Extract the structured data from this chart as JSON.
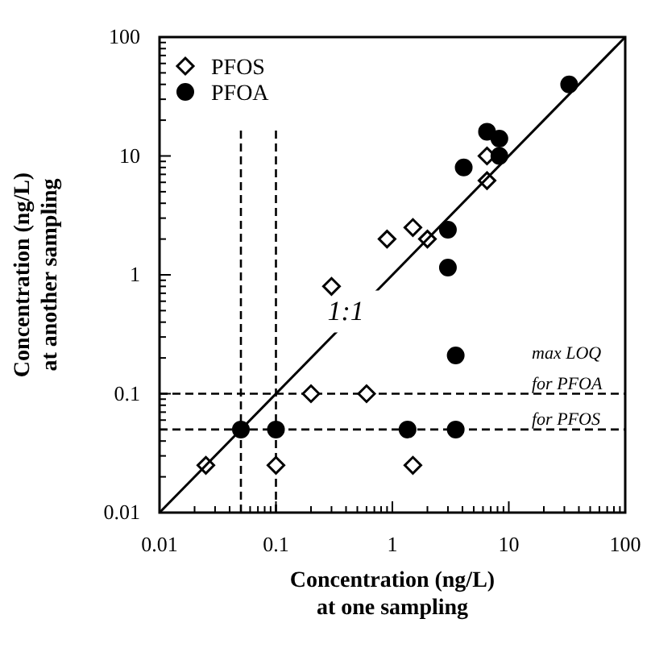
{
  "chart_data": {
    "type": "scatter",
    "xlabel": "Concentration (ng/L)\nat one sampling",
    "ylabel": "Concentration (ng/L)\nat another sampling",
    "log": "xy",
    "grid": false,
    "legend": "top left",
    "xlim": [
      0.01,
      100
    ],
    "ylim": [
      0.01,
      100
    ],
    "xticks": [
      0.01,
      {
        "value": 0.02,
        "label": null
      },
      {
        "value": 0.03,
        "label": null
      },
      {
        "value": 0.04,
        "label": null
      },
      {
        "value": 0.05,
        "label": null
      },
      {
        "value": 0.06,
        "label": null
      },
      {
        "value": 0.07,
        "label": null
      },
      {
        "value": 0.08,
        "label": null
      },
      {
        "value": 0.09,
        "label": null
      },
      0.1,
      {
        "value": 0.2,
        "label": null
      },
      {
        "value": 0.3,
        "label": null
      },
      {
        "value": 0.4,
        "label": null
      },
      {
        "value": 0.5,
        "label": null
      },
      {
        "value": 0.6,
        "label": null
      },
      {
        "value": 0.7,
        "label": null
      },
      {
        "value": 0.8,
        "label": null
      },
      {
        "value": 0.9,
        "label": null
      },
      1,
      {
        "value": 2,
        "label": null
      },
      {
        "value": 3,
        "label": null
      },
      {
        "value": 4,
        "label": null
      },
      {
        "value": 5,
        "label": null
      },
      {
        "value": 6,
        "label": null
      },
      {
        "value": 7,
        "label": null
      },
      {
        "value": 8,
        "label": null
      },
      {
        "value": 9,
        "label": null
      },
      10,
      {
        "value": 20,
        "label": null
      },
      {
        "value": 30,
        "label": null
      },
      {
        "value": 40,
        "label": null
      },
      {
        "value": 50,
        "label": null
      },
      {
        "value": 60,
        "label": null
      },
      {
        "value": 70,
        "label": null
      },
      {
        "value": 80,
        "label": null
      },
      {
        "value": 90,
        "label": null
      },
      100
    ],
    "yticks": [
      0.01,
      {
        "value": 0.02,
        "label": null
      },
      {
        "value": 0.03,
        "label": null
      },
      {
        "value": 0.04,
        "label": null
      },
      {
        "value": 0.05,
        "label": null
      },
      {
        "value": 0.06,
        "label": null
      },
      {
        "value": 0.07,
        "label": null
      },
      {
        "value": 0.08,
        "label": null
      },
      {
        "value": 0.09,
        "label": null
      },
      0.1,
      {
        "value": 0.2,
        "label": null
      },
      {
        "value": 0.3,
        "label": null
      },
      {
        "value": 0.4,
        "label": null
      },
      {
        "value": 0.5,
        "label": null
      },
      {
        "value": 0.6,
        "label": null
      },
      {
        "value": 0.7,
        "label": null
      },
      {
        "value": 0.8,
        "label": null
      },
      {
        "value": 0.9,
        "label": null
      },
      1,
      {
        "value": 2,
        "label": null
      },
      {
        "value": 3,
        "label": null
      },
      {
        "value": 4,
        "label": null
      },
      {
        "value": 5,
        "label": null
      },
      {
        "value": 6,
        "label": null
      },
      {
        "value": 7,
        "label": null
      },
      {
        "value": 8,
        "label": null
      },
      {
        "value": 9,
        "label": null
      },
      10,
      {
        "value": 20,
        "label": null
      },
      {
        "value": 30,
        "label": null
      },
      {
        "value": 40,
        "label": null
      },
      {
        "value": 50,
        "label": null
      },
      {
        "value": 60,
        "label": null
      },
      {
        "value": 70,
        "label": null
      },
      {
        "value": 80,
        "label": null
      },
      {
        "value": 90,
        "label": null
      },
      100
    ],
    "series": [
      {
        "name": "PFOS",
        "type": "scatter",
        "marker": "diamond",
        "color": "#ffffff",
        "x": [
          0.025,
          0.1,
          1.5,
          0.2,
          0.6,
          0.3,
          0.9,
          1.5,
          2.0,
          6.5,
          6.5
        ],
        "values": [
          0.025,
          0.025,
          0.025,
          0.1,
          0.1,
          0.8,
          2.0,
          2.5,
          2.0,
          6.2,
          10
        ]
      },
      {
        "name": "PFOA",
        "type": "scatter",
        "marker": "circle",
        "color": "#000000",
        "x": [
          33,
          6.5,
          8.3,
          8.3,
          4.1,
          3.0,
          3.0,
          3.5,
          0.05,
          0.1,
          1.35,
          3.5
        ],
        "values": [
          40,
          16,
          14,
          10,
          8,
          2.4,
          1.15,
          0.21,
          0.05,
          0.05,
          0.05,
          0.05
        ]
      },
      {
        "name": "1:1",
        "type": "line",
        "marker": "none",
        "line_style": "solid",
        "color": "#000000",
        "x": [
          0.01,
          100
        ],
        "values": [
          0.01,
          100
        ]
      }
    ],
    "ref_lines": [
      {
        "axis": "x",
        "value": 0.05,
        "line_style": "dashed"
      },
      {
        "axis": "x",
        "value": 0.1,
        "line_style": "dashed"
      },
      {
        "axis": "y",
        "value": 0.1,
        "label": "for PFOA",
        "line_style": "dashed"
      },
      {
        "axis": "y",
        "value": 0.05,
        "label": "for PFOS",
        "line_style": "dashed"
      }
    ],
    "annotations": [
      "max LOQ"
    ]
  }
}
